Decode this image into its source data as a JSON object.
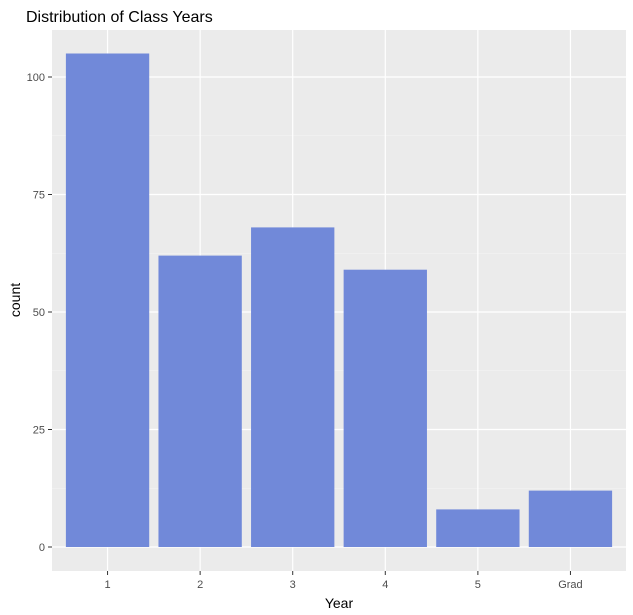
{
  "chart_data": {
    "type": "bar",
    "title": "Distribution of Class Years",
    "xlabel": "Year",
    "ylabel": "count",
    "categories": [
      "1",
      "2",
      "3",
      "4",
      "5",
      "Grad"
    ],
    "values": [
      105,
      62,
      68,
      59,
      8,
      12
    ],
    "ylim": [
      0,
      110
    ],
    "yticks": [
      "0",
      "25",
      "50",
      "75",
      "100"
    ],
    "grid": true,
    "legend": "none",
    "colors": {
      "bar": "#7189d9",
      "panel": "#ebebeb",
      "grid_major": "#ffffff",
      "grid_minor": "#f5f5f5"
    }
  }
}
